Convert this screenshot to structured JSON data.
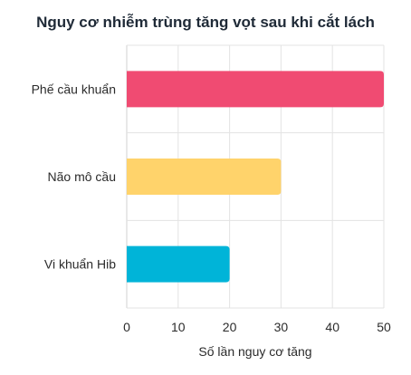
{
  "chart_data": {
    "type": "bar",
    "orientation": "horizontal",
    "title": "Nguy cơ nhiễm trùng tăng vọt sau khi cắt lách",
    "xlabel": "Số lần nguy cơ tăng",
    "ylabel": "",
    "categories": [
      "Phế cầu khuẩn",
      "Não mô cầu",
      "Vi khuẩn Hib"
    ],
    "values": [
      50,
      30,
      20
    ],
    "colors": [
      "#f04b72",
      "#ffd36b",
      "#00b4d8"
    ],
    "xlim": [
      0,
      50
    ],
    "xticks": [
      "0",
      "10",
      "20",
      "30",
      "40",
      "50"
    ],
    "grid": true,
    "legend": "none"
  }
}
